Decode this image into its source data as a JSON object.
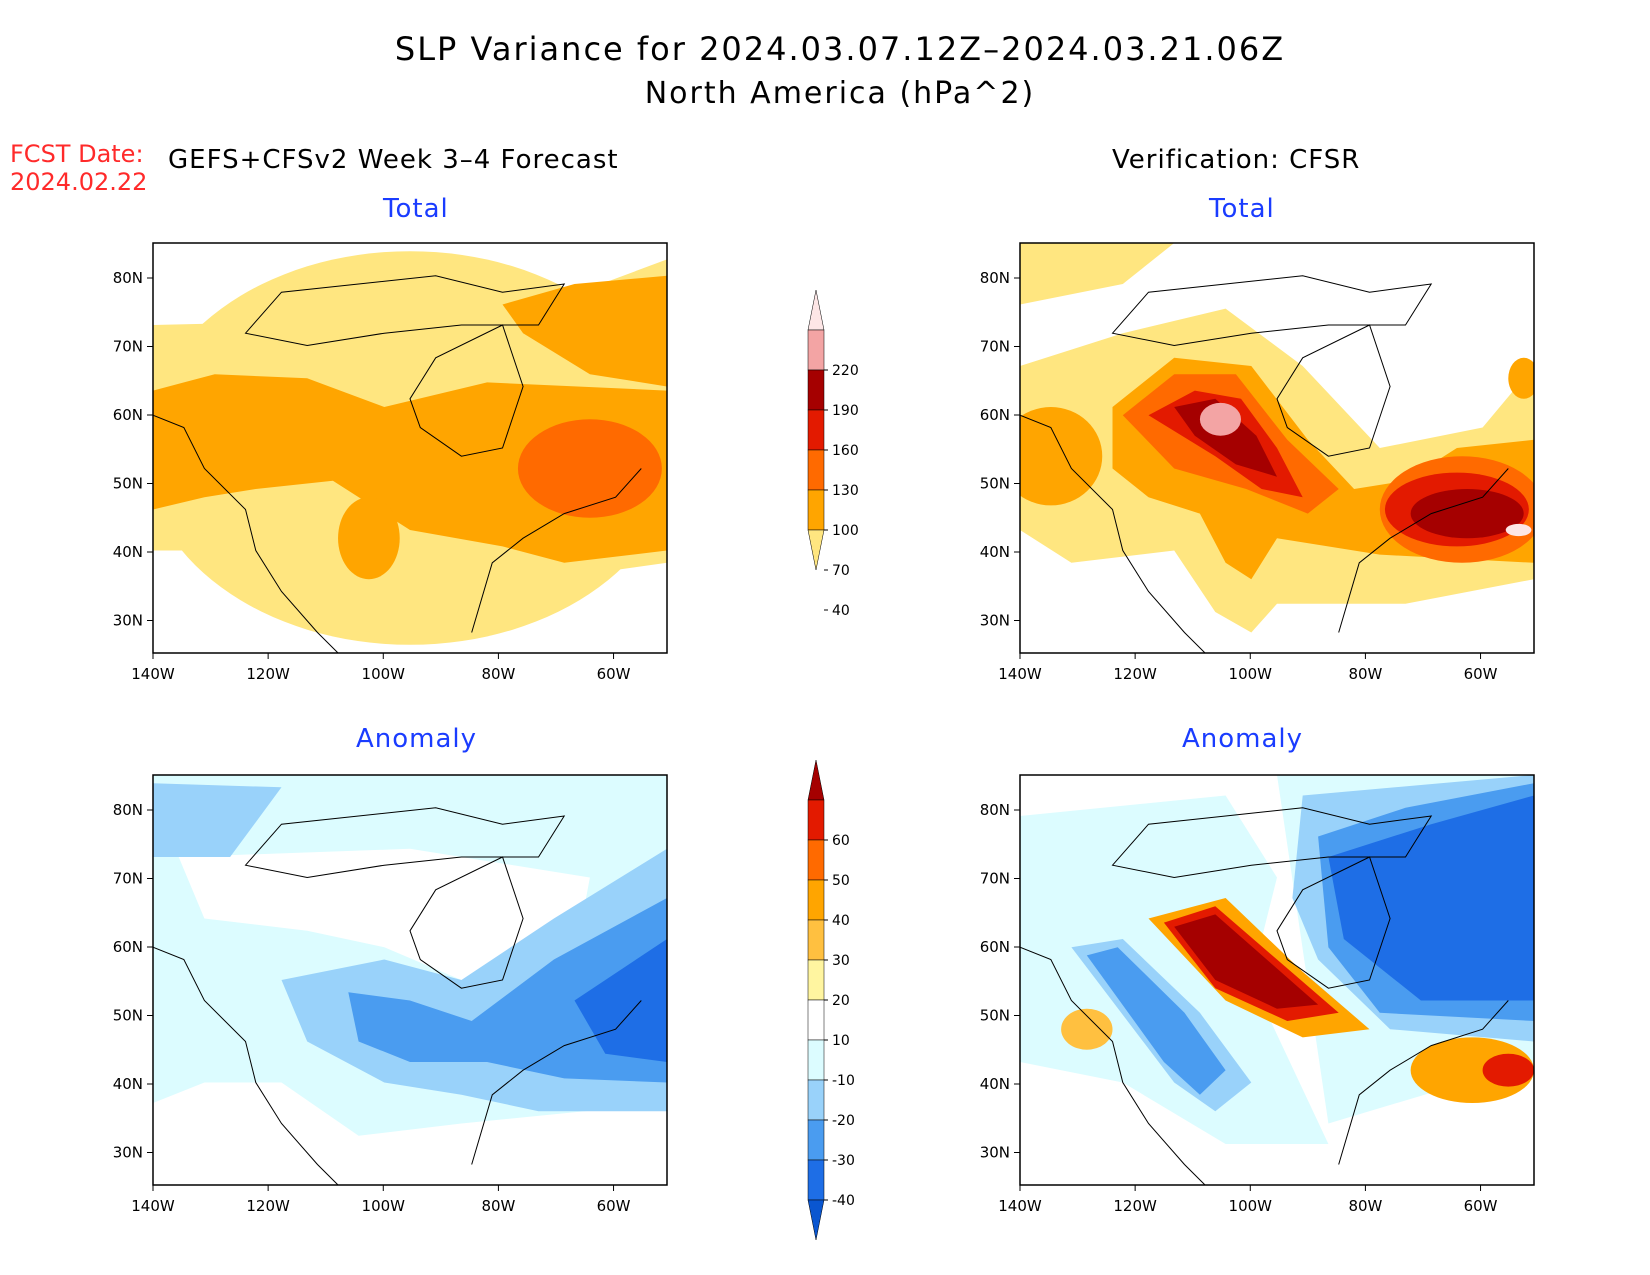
{
  "title": {
    "line1": "SLP Variance for 2024.03.07.12Z–2024.03.21.06Z",
    "line2": "North America (hPa^2)"
  },
  "forecast_date": {
    "label": "FCST Date:",
    "value": "2024.02.22"
  },
  "columns": {
    "left": "GEFS+CFSv2 Week 3–4 Forecast",
    "right": "Verification: CFSR"
  },
  "panels": {
    "forecast_total": {
      "title": "Total"
    },
    "verification_total": {
      "title": "Total"
    },
    "forecast_anomaly": {
      "title": "Anomaly"
    },
    "verification_anomaly": {
      "title": "Anomaly"
    }
  },
  "axes": {
    "lon_ticks": [
      "140W",
      "120W",
      "100W",
      "80W",
      "60W"
    ],
    "lat_ticks": [
      "80N",
      "70N",
      "60N",
      "50N",
      "40N",
      "30N"
    ]
  },
  "colorbars": {
    "total": {
      "levels": [
        "40",
        "70",
        "100",
        "130",
        "160",
        "190",
        "220"
      ],
      "colors": [
        "#ffe680",
        "#ffa500",
        "#ff6a00",
        "#e31a00",
        "#a50000",
        "#f3a4a4",
        "#fde6e6"
      ]
    },
    "anomaly": {
      "levels": [
        "60",
        "50",
        "40",
        "30",
        "20",
        "10",
        "-10",
        "-20",
        "-30",
        "-40"
      ],
      "colors": [
        "#a50000",
        "#e31a00",
        "#ff6a00",
        "#ffa500",
        "#ffc040",
        "#fff5a0",
        "#ffffff",
        "#dcfcff",
        "#99d2fa",
        "#4a9cf0",
        "#1e6ee6",
        "#0a56d0"
      ]
    }
  }
}
